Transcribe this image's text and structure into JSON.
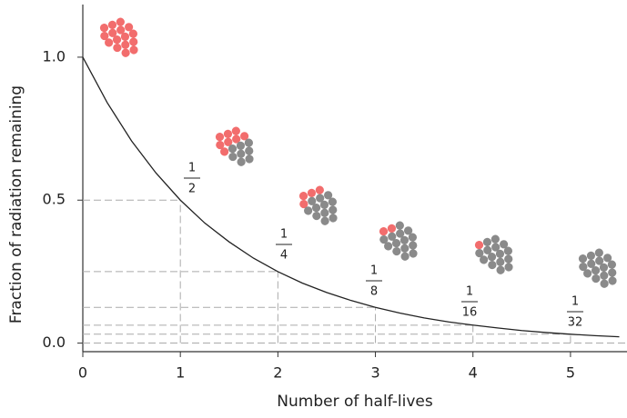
{
  "chart_data": {
    "type": "line",
    "x_label": "Number of half-lives",
    "y_label": "Fraction of radiation remaining",
    "xlim": [
      0,
      5.57
    ],
    "ylim": [
      -0.03,
      1.2
    ],
    "xticks": [
      0,
      1,
      2,
      3,
      4,
      5
    ],
    "yticks": [
      {
        "value": 0,
        "label": "0.0"
      },
      0.5,
      {
        "value": 1,
        "label": "1.0"
      }
    ],
    "x": [
      0,
      0.25,
      0.5,
      0.75,
      1,
      1.25,
      1.5,
      1.75,
      2,
      2.25,
      2.5,
      2.75,
      3,
      3.25,
      3.5,
      3.75,
      4,
      4.25,
      4.5,
      4.75,
      5,
      5.25,
      5.5
    ],
    "series": [
      {
        "color": "#222222",
        "values": [
          1,
          0.841,
          0.707,
          0.595,
          0.5,
          0.42,
          0.354,
          0.297,
          0.25,
          0.21,
          0.177,
          0.149,
          0.125,
          0.105,
          0.088,
          0.074,
          0.063,
          0.053,
          0.044,
          0.037,
          0.031,
          0.026,
          0.022
        ]
      }
    ],
    "guides": {
      "x": [
        1,
        2,
        3,
        4,
        5
      ],
      "y": [
        0.5,
        0.25,
        0.125,
        0.0625,
        0.03125
      ],
      "labels": [
        {
          "num": "1",
          "den": "2"
        },
        {
          "num": "1",
          "den": "4"
        },
        {
          "num": "1",
          "den": "8"
        },
        {
          "num": "1",
          "den": "16"
        },
        {
          "num": "1",
          "den": "32"
        }
      ]
    },
    "atoms_per_cluster": 16,
    "red_atoms": [
      16,
      8,
      4,
      2,
      1,
      0
    ],
    "atom_colors": {
      "decayed": "#8a8a8a",
      "radioactive": "#f26d6d"
    }
  }
}
